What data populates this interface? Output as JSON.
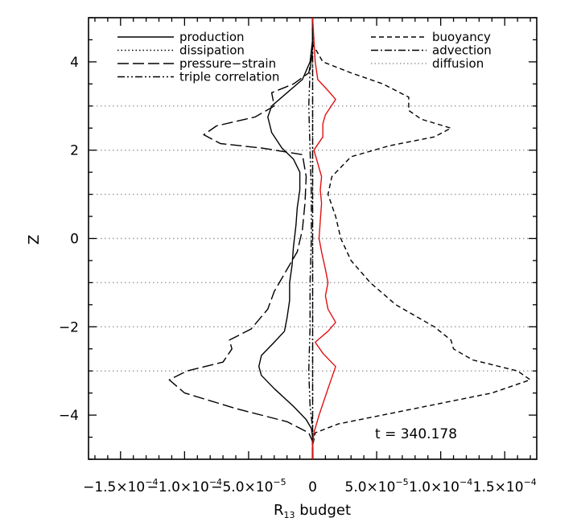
{
  "chart_data": {
    "type": "line",
    "xlabel": "R",
    "xlabel_sub": "13",
    "xlabel_suffix": " budget",
    "ylabel": "Z",
    "xlim": [
      -0.000175,
      0.000175
    ],
    "ylim": [
      -5,
      5
    ],
    "x_ticks": [
      -0.00015,
      -0.0001,
      -5e-05,
      0,
      5e-05,
      0.0001,
      0.00015
    ],
    "x_tick_labels": [
      {
        "mant": "−1.5×10",
        "exp": "−4"
      },
      {
        "mant": "−1.0×10",
        "exp": "−4"
      },
      {
        "mant": "−5.0×10",
        "exp": "−5"
      },
      {
        "mant": "0",
        "exp": ""
      },
      {
        "mant": "5.0×10",
        "exp": "−5"
      },
      {
        "mant": "1.0×10",
        "exp": "−4"
      },
      {
        "mant": "1.5×10",
        "exp": "−4"
      }
    ],
    "y_ticks": [
      -4,
      -2,
      0,
      2,
      4
    ],
    "y_tick_labels": [
      "−4",
      "−2",
      "0",
      "2",
      "4"
    ],
    "hgrid": [
      -3,
      -2,
      -1,
      0,
      1,
      2,
      3
    ],
    "annotation": "t = 340.178",
    "legend_left": [
      "production",
      "dissipation",
      "pressure−strain",
      "triple correlation"
    ],
    "legend_right": [
      "buoyancy",
      "advection",
      "diffusion"
    ],
    "series": [
      {
        "name": "production",
        "style": "solid",
        "color": "#000000",
        "points": [
          [
            0,
            -5
          ],
          [
            0,
            -4.5
          ],
          [
            -1e-06,
            -4.3
          ],
          [
            -5e-06,
            -4.1
          ],
          [
            -1.5e-05,
            -3.8
          ],
          [
            -3e-05,
            -3.4
          ],
          [
            -4e-05,
            -3.1
          ],
          [
            -4.2e-05,
            -2.9
          ],
          [
            -4e-05,
            -2.65
          ],
          [
            -3e-05,
            -2.35
          ],
          [
            -2.2e-05,
            -2.1
          ],
          [
            -2e-05,
            -1.8
          ],
          [
            -1.8e-05,
            -1.4
          ],
          [
            -1.8e-05,
            -1.0
          ],
          [
            -1.6e-05,
            -0.6
          ],
          [
            -1.5e-05,
            -0.2
          ],
          [
            -1.3e-05,
            0.3
          ],
          [
            -1.2e-05,
            0.7
          ],
          [
            -1e-05,
            1.1
          ],
          [
            -1e-05,
            1.5
          ],
          [
            -1.5e-05,
            1.8
          ],
          [
            -2.4e-05,
            2.05
          ],
          [
            -3.2e-05,
            2.4
          ],
          [
            -3.5e-05,
            2.75
          ],
          [
            -3.2e-05,
            3.0
          ],
          [
            -2e-05,
            3.3
          ],
          [
            -8e-06,
            3.6
          ],
          [
            -2e-06,
            4.0
          ],
          [
            0,
            4.5
          ],
          [
            0,
            5
          ]
        ]
      },
      {
        "name": "dissipation",
        "style": "dotted",
        "color": "#000000",
        "points": [
          [
            0,
            -5
          ],
          [
            0,
            -2
          ],
          [
            0,
            0
          ],
          [
            0,
            2
          ],
          [
            0,
            5
          ]
        ]
      },
      {
        "name": "pressure−strain",
        "style": "longdash",
        "color": "#000000",
        "points": [
          [
            0,
            -5
          ],
          [
            0,
            -4.6
          ],
          [
            -3e-06,
            -4.4
          ],
          [
            -2e-05,
            -4.15
          ],
          [
            -6e-05,
            -3.85
          ],
          [
            -0.0001,
            -3.5
          ],
          [
            -0.000112,
            -3.2
          ],
          [
            -9.8e-05,
            -3.0
          ],
          [
            -7e-05,
            -2.8
          ],
          [
            -6.3e-05,
            -2.5
          ],
          [
            -6.5e-05,
            -2.3
          ],
          [
            -4.8e-05,
            -2.05
          ],
          [
            -3.5e-05,
            -1.6
          ],
          [
            -3e-05,
            -1.2
          ],
          [
            -2e-05,
            -0.7
          ],
          [
            -1.2e-05,
            -0.3
          ],
          [
            -8e-06,
            0.2
          ],
          [
            -6e-06,
            0.8
          ],
          [
            -5e-06,
            1.4
          ],
          [
            -8e-06,
            1.9
          ],
          [
            -4e-05,
            2.05
          ],
          [
            -7.2e-05,
            2.15
          ],
          [
            -8.5e-05,
            2.35
          ],
          [
            -7.5e-05,
            2.55
          ],
          [
            -4.5e-05,
            2.75
          ],
          [
            -3e-05,
            3.0
          ],
          [
            -3.2e-05,
            3.3
          ],
          [
            -1.5e-05,
            3.5
          ],
          [
            -3e-06,
            3.75
          ],
          [
            0,
            4.2
          ],
          [
            0,
            5
          ]
        ]
      },
      {
        "name": "triple correlation",
        "style": "dashdotdot",
        "color": "#000000",
        "points": [
          [
            0,
            -5
          ],
          [
            0,
            -4.3
          ],
          [
            -2e-06,
            -3.8
          ],
          [
            -3e-06,
            -3.0
          ],
          [
            -2e-06,
            -2.0
          ],
          [
            -2e-06,
            -1.0
          ],
          [
            -1e-06,
            0
          ],
          [
            -1e-06,
            1.0
          ],
          [
            -2e-06,
            2.0
          ],
          [
            -3e-06,
            3.0
          ],
          [
            -2e-06,
            3.8
          ],
          [
            0,
            4.4
          ],
          [
            0,
            5
          ]
        ]
      },
      {
        "name": "buoyancy",
        "style": "dashed",
        "color": "#000000",
        "points": [
          [
            0,
            -5
          ],
          [
            0,
            -4.7
          ],
          [
            2e-06,
            -4.4
          ],
          [
            2e-05,
            -4.2
          ],
          [
            8e-05,
            -3.85
          ],
          [
            0.00014,
            -3.5
          ],
          [
            0.00017,
            -3.2
          ],
          [
            0.00016,
            -3.0
          ],
          [
            0.000125,
            -2.75
          ],
          [
            0.00011,
            -2.5
          ],
          [
            0.000108,
            -2.3
          ],
          [
            9.5e-05,
            -2.0
          ],
          [
            6.5e-05,
            -1.5
          ],
          [
            4.5e-05,
            -1.0
          ],
          [
            3e-05,
            -0.5
          ],
          [
            2.2e-05,
            0
          ],
          [
            1.8e-05,
            0.5
          ],
          [
            1.2e-05,
            1.0
          ],
          [
            1.5e-05,
            1.4
          ],
          [
            3e-05,
            1.85
          ],
          [
            6e-05,
            2.1
          ],
          [
            9.5e-05,
            2.3
          ],
          [
            0.000108,
            2.5
          ],
          [
            8.5e-05,
            2.7
          ],
          [
            7.5e-05,
            2.9
          ],
          [
            7.5e-05,
            3.2
          ],
          [
            5.5e-05,
            3.5
          ],
          [
            3e-05,
            3.75
          ],
          [
            8e-06,
            4.0
          ],
          [
            0,
            4.4
          ],
          [
            0,
            5
          ]
        ]
      },
      {
        "name": "advection",
        "style": "dashdot",
        "color": "#000000",
        "points": [
          [
            0,
            -5
          ],
          [
            0,
            -4
          ],
          [
            0,
            -3
          ],
          [
            0,
            -2
          ],
          [
            0,
            -1
          ],
          [
            0,
            0
          ],
          [
            0,
            1
          ],
          [
            0,
            2
          ],
          [
            0,
            3
          ],
          [
            0,
            4
          ],
          [
            0,
            5
          ]
        ]
      },
      {
        "name": "diffusion",
        "style": "solid",
        "color": "#e01010",
        "points": [
          [
            0,
            -5
          ],
          [
            0,
            -4.7
          ],
          [
            1e-06,
            -4.4
          ],
          [
            5e-06,
            -4.0
          ],
          [
            1.2e-05,
            -3.4
          ],
          [
            1.8e-05,
            -2.9
          ],
          [
            8e-06,
            -2.6
          ],
          [
            2e-06,
            -2.35
          ],
          [
            1.2e-05,
            -2.1
          ],
          [
            1.8e-05,
            -1.9
          ],
          [
            1.2e-05,
            -1.6
          ],
          [
            1e-05,
            -1.3
          ],
          [
            1.2e-05,
            -1.0
          ],
          [
            1e-05,
            -0.7
          ],
          [
            7e-06,
            -0.3
          ],
          [
            5e-06,
            0
          ],
          [
            6e-06,
            0.4
          ],
          [
            7e-06,
            0.8
          ],
          [
            6e-06,
            1.1
          ],
          [
            7e-06,
            1.4
          ],
          [
            3e-06,
            1.8
          ],
          [
            1e-06,
            2.0
          ],
          [
            8e-06,
            2.3
          ],
          [
            8e-06,
            2.6
          ],
          [
            1e-05,
            2.8
          ],
          [
            1.8e-05,
            3.15
          ],
          [
            1.2e-05,
            3.35
          ],
          [
            4e-06,
            3.6
          ],
          [
            2e-06,
            4.0
          ],
          [
            1e-06,
            4.5
          ],
          [
            0,
            5
          ]
        ]
      }
    ]
  }
}
